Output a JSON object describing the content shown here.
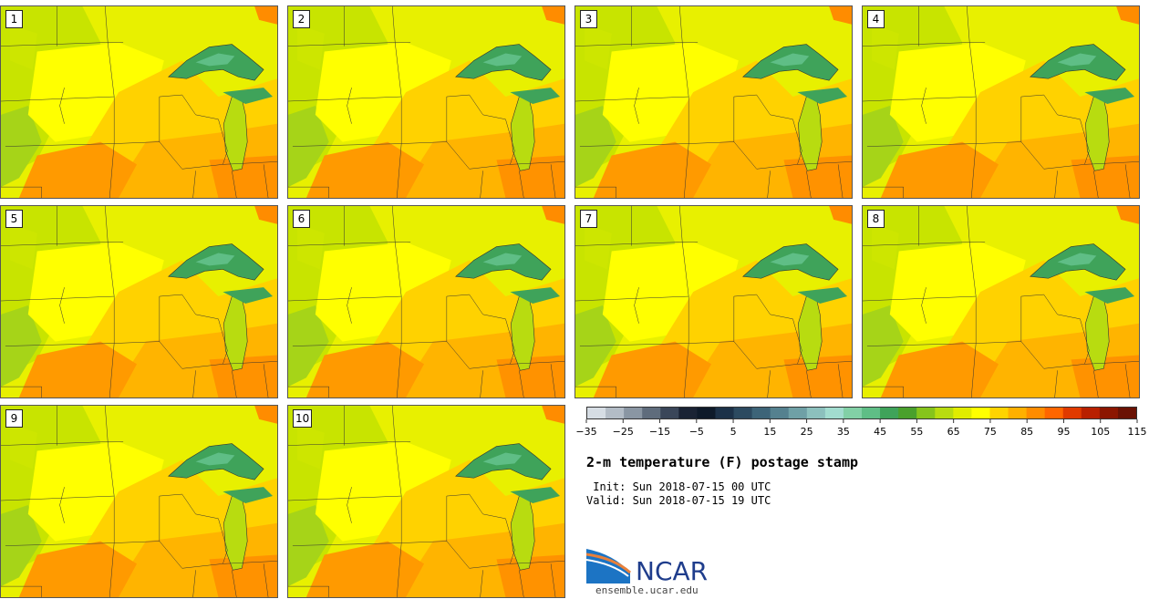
{
  "panels": [
    {
      "label": "1"
    },
    {
      "label": "2"
    },
    {
      "label": "3"
    },
    {
      "label": "4"
    },
    {
      "label": "5"
    },
    {
      "label": "6"
    },
    {
      "label": "7"
    },
    {
      "label": "8"
    },
    {
      "label": "9"
    },
    {
      "label": "10"
    }
  ],
  "colorbar": {
    "colors": [
      "#d6dde4",
      "#b3bcc6",
      "#8a96a3",
      "#5f6c7c",
      "#3a4659",
      "#1a2334",
      "#0e1a2a",
      "#1c3148",
      "#2c4a60",
      "#3d6478",
      "#55818f",
      "#6fa0a6",
      "#8cc0bd",
      "#a2dccf",
      "#82d0a6",
      "#5fbe86",
      "#3fa35a",
      "#4aa02c",
      "#86c41c",
      "#b8dc10",
      "#e0ec00",
      "#ffff00",
      "#ffd400",
      "#ffb000",
      "#ff8c00",
      "#ff6600",
      "#e03a00",
      "#b82000",
      "#8c1600",
      "#6a1204"
    ],
    "tick_labels": [
      "−35",
      "−25",
      "−15",
      "−5",
      "5",
      "15",
      "25",
      "35",
      "45",
      "55",
      "65",
      "75",
      "85",
      "95",
      "105",
      "115"
    ]
  },
  "title": "2-m temperature (F) postage stamp",
  "init_line": " Init: Sun 2018-07-15 00 UTC",
  "valid_line": "Valid: Sun 2018-07-15 19 UTC",
  "logo": {
    "text": "NCAR",
    "url": "ensemble.ucar.edu",
    "color_blue": "#1c74c4",
    "color_orange": "#e8803a"
  }
}
